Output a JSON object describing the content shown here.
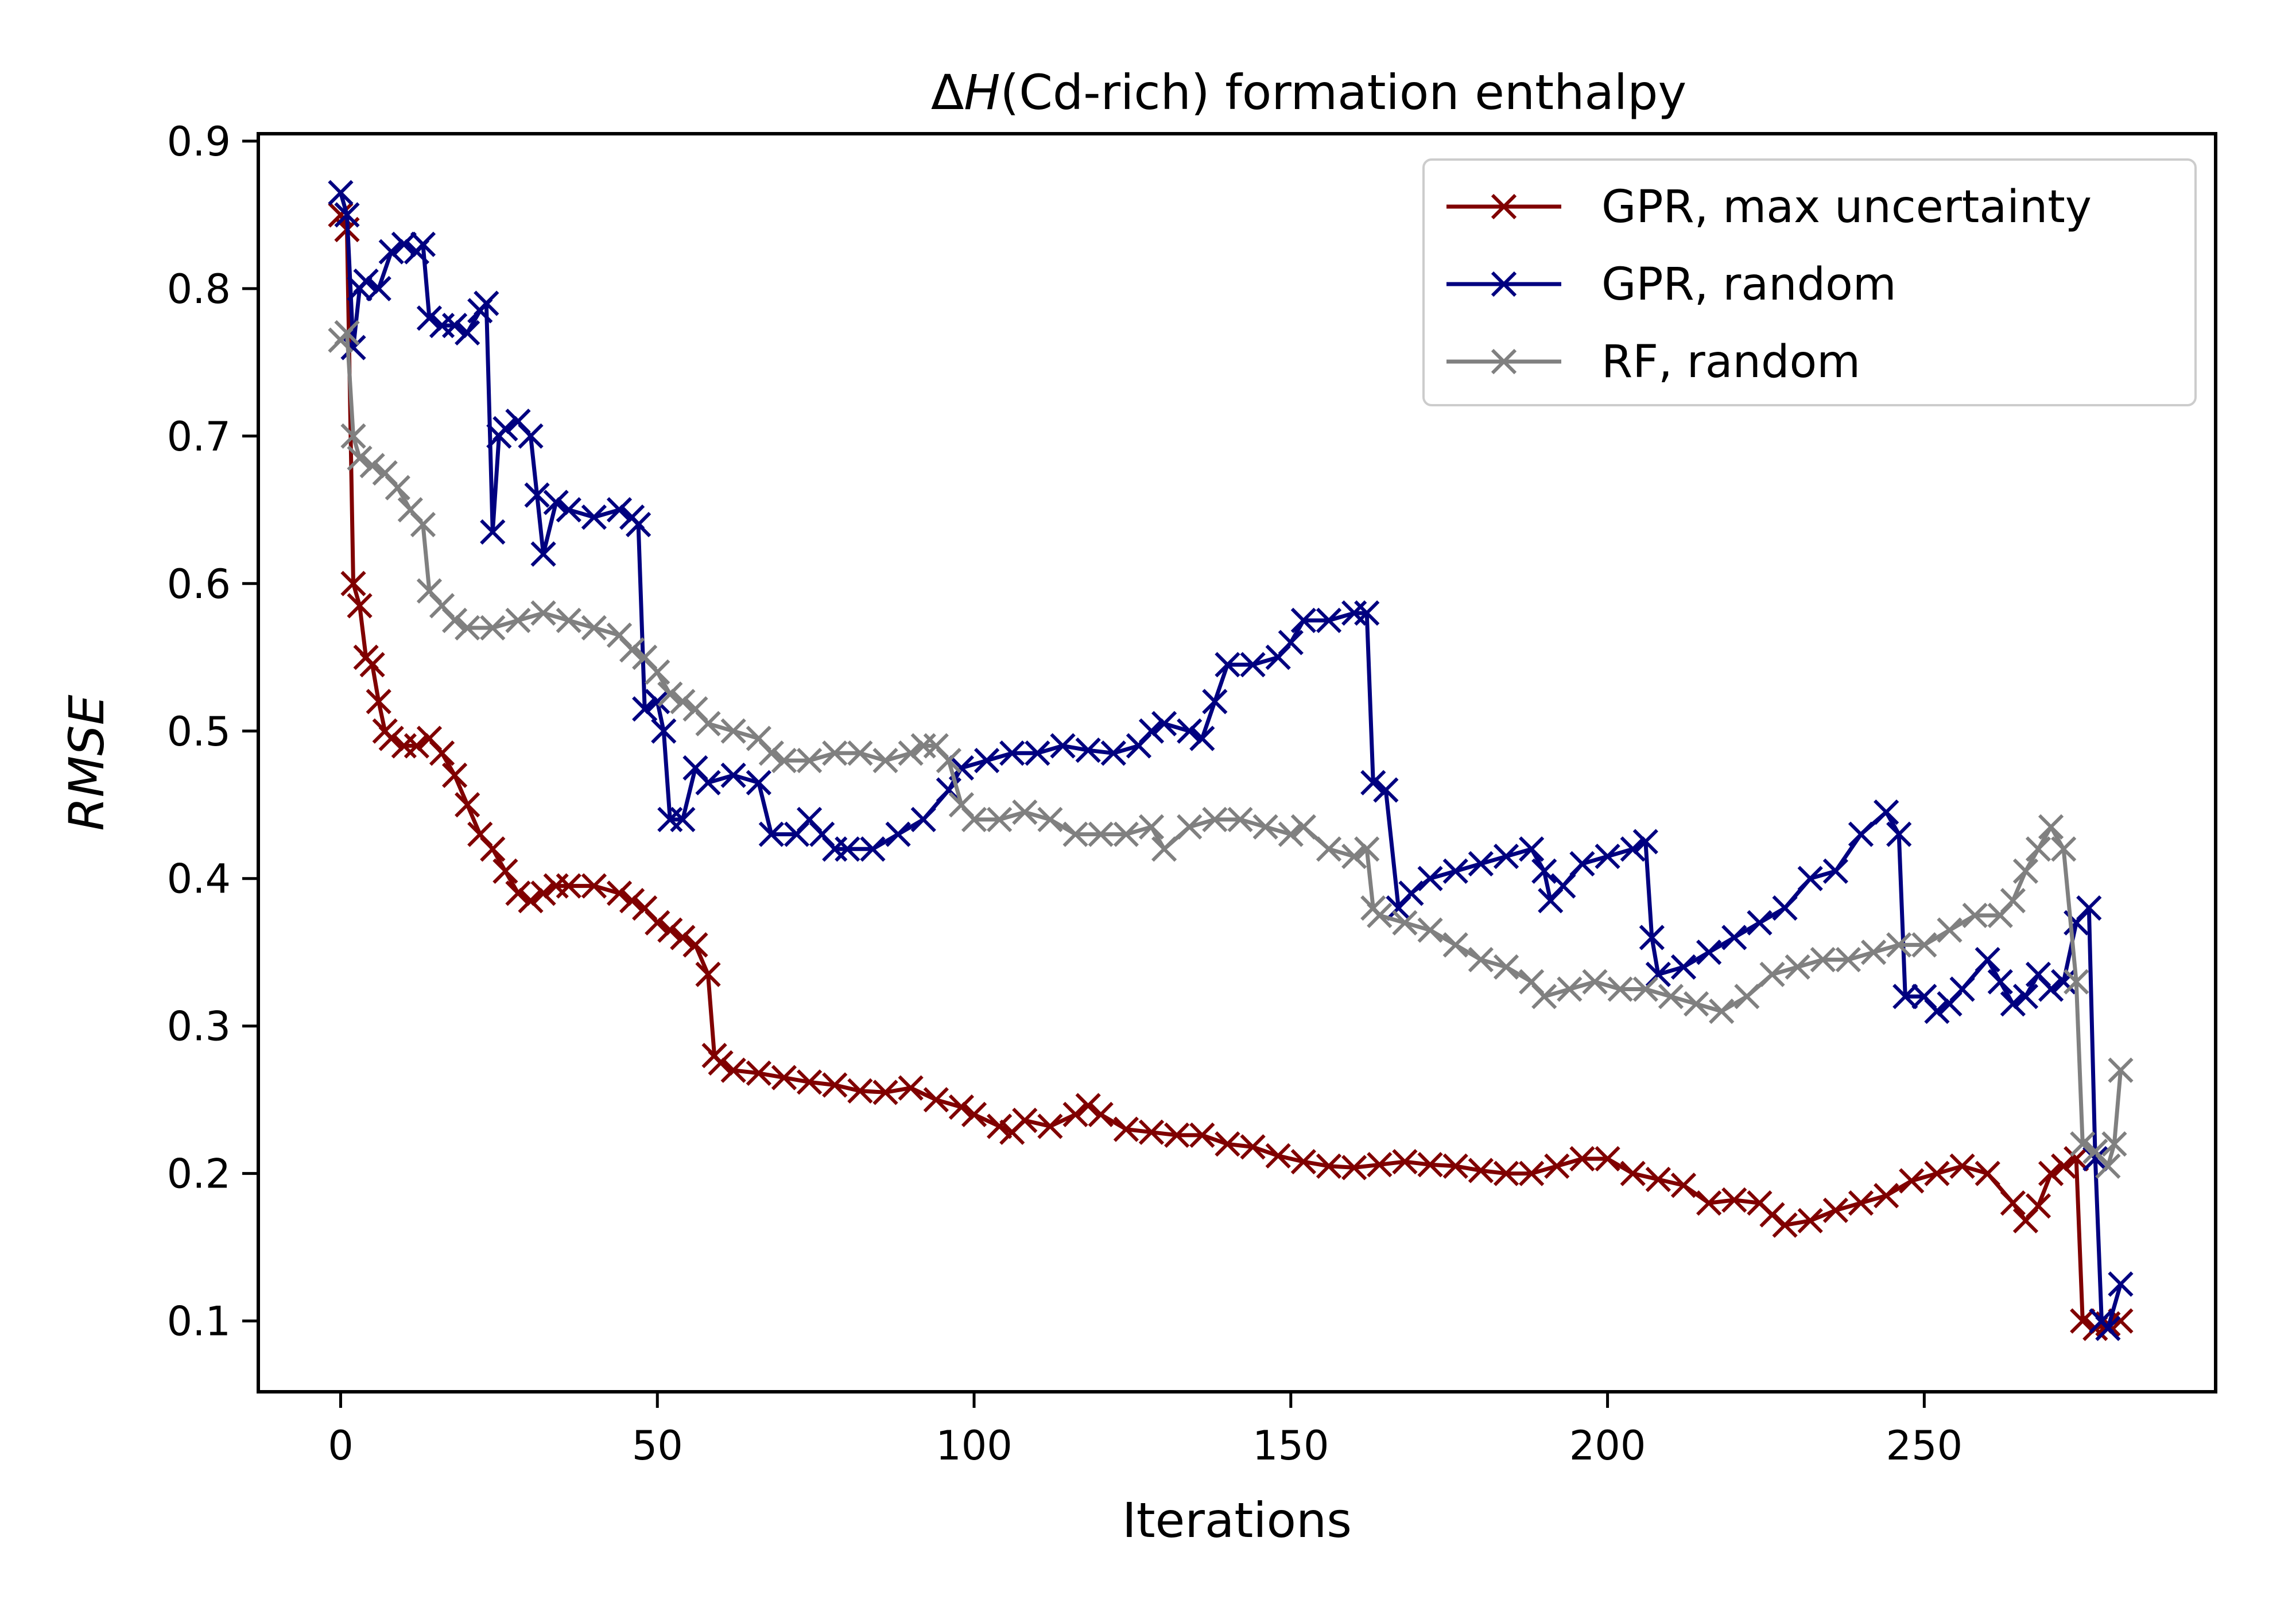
{
  "chart_data": {
    "type": "line",
    "title_prefix": "Δ",
    "title_symbol": "H",
    "title_suffix": "(Cd-rich) formation enthalpy",
    "xlabel": "Iterations",
    "ylabel": "RMSE",
    "xlim": [
      -13,
      296
    ],
    "ylim": [
      0.052,
      0.905
    ],
    "xticks": [
      0,
      50,
      100,
      150,
      200,
      250
    ],
    "xtick_labels": [
      "0",
      "50",
      "100",
      "150",
      "200",
      "250"
    ],
    "yticks": [
      0.1,
      0.2,
      0.3,
      0.4,
      0.5,
      0.6,
      0.7,
      0.8,
      0.9
    ],
    "ytick_labels": [
      "0.1",
      "0.2",
      "0.3",
      "0.4",
      "0.5",
      "0.6",
      "0.7",
      "0.8",
      "0.9"
    ],
    "marker": "x",
    "grid": false,
    "legend_position": "top-right",
    "series": [
      {
        "name": "GPR, max uncertainty",
        "color": "#800000",
        "points": [
          [
            0,
            0.85
          ],
          [
            1,
            0.84
          ],
          [
            2,
            0.6
          ],
          [
            3,
            0.585
          ],
          [
            4,
            0.55
          ],
          [
            5,
            0.545
          ],
          [
            6,
            0.52
          ],
          [
            7,
            0.5
          ],
          [
            8,
            0.495
          ],
          [
            10,
            0.49
          ],
          [
            12,
            0.49
          ],
          [
            14,
            0.495
          ],
          [
            16,
            0.485
          ],
          [
            18,
            0.47
          ],
          [
            20,
            0.45
          ],
          [
            22,
            0.43
          ],
          [
            24,
            0.42
          ],
          [
            26,
            0.405
          ],
          [
            28,
            0.39
          ],
          [
            30,
            0.385
          ],
          [
            32,
            0.39
          ],
          [
            34,
            0.395
          ],
          [
            36,
            0.395
          ],
          [
            40,
            0.395
          ],
          [
            44,
            0.39
          ],
          [
            46,
            0.385
          ],
          [
            48,
            0.38
          ],
          [
            50,
            0.37
          ],
          [
            52,
            0.365
          ],
          [
            54,
            0.36
          ],
          [
            56,
            0.355
          ],
          [
            58,
            0.335
          ],
          [
            59,
            0.28
          ],
          [
            60,
            0.275
          ],
          [
            62,
            0.27
          ],
          [
            66,
            0.268
          ],
          [
            70,
            0.265
          ],
          [
            74,
            0.262
          ],
          [
            78,
            0.26
          ],
          [
            82,
            0.256
          ],
          [
            86,
            0.255
          ],
          [
            90,
            0.258
          ],
          [
            94,
            0.25
          ],
          [
            98,
            0.245
          ],
          [
            100,
            0.24
          ],
          [
            104,
            0.232
          ],
          [
            106,
            0.228
          ],
          [
            108,
            0.236
          ],
          [
            112,
            0.232
          ],
          [
            116,
            0.24
          ],
          [
            118,
            0.246
          ],
          [
            120,
            0.24
          ],
          [
            124,
            0.23
          ],
          [
            128,
            0.228
          ],
          [
            132,
            0.226
          ],
          [
            136,
            0.226
          ],
          [
            140,
            0.22
          ],
          [
            144,
            0.218
          ],
          [
            148,
            0.212
          ],
          [
            152,
            0.208
          ],
          [
            156,
            0.205
          ],
          [
            160,
            0.204
          ],
          [
            164,
            0.206
          ],
          [
            168,
            0.208
          ],
          [
            172,
            0.206
          ],
          [
            176,
            0.205
          ],
          [
            180,
            0.202
          ],
          [
            184,
            0.2
          ],
          [
            188,
            0.2
          ],
          [
            192,
            0.205
          ],
          [
            196,
            0.21
          ],
          [
            200,
            0.21
          ],
          [
            204,
            0.2
          ],
          [
            208,
            0.196
          ],
          [
            212,
            0.192
          ],
          [
            216,
            0.18
          ],
          [
            220,
            0.182
          ],
          [
            224,
            0.18
          ],
          [
            226,
            0.172
          ],
          [
            228,
            0.165
          ],
          [
            232,
            0.168
          ],
          [
            236,
            0.175
          ],
          [
            240,
            0.18
          ],
          [
            244,
            0.185
          ],
          [
            248,
            0.195
          ],
          [
            252,
            0.2
          ],
          [
            256,
            0.205
          ],
          [
            260,
            0.2
          ],
          [
            264,
            0.18
          ],
          [
            266,
            0.168
          ],
          [
            268,
            0.178
          ],
          [
            270,
            0.2
          ],
          [
            272,
            0.205
          ],
          [
            274,
            0.21
          ],
          [
            275,
            0.1
          ],
          [
            277,
            0.095
          ],
          [
            279,
            0.098
          ],
          [
            281,
            0.1
          ]
        ]
      },
      {
        "name": "GPR, random",
        "color": "#000080",
        "points": [
          [
            0,
            0.865
          ],
          [
            1,
            0.85
          ],
          [
            2,
            0.76
          ],
          [
            3,
            0.8
          ],
          [
            4,
            0.805
          ],
          [
            6,
            0.8
          ],
          [
            8,
            0.825
          ],
          [
            10,
            0.83
          ],
          [
            12,
            0.825
          ],
          [
            13,
            0.83
          ],
          [
            14,
            0.78
          ],
          [
            16,
            0.775
          ],
          [
            18,
            0.775
          ],
          [
            20,
            0.77
          ],
          [
            22,
            0.785
          ],
          [
            23,
            0.79
          ],
          [
            24,
            0.635
          ],
          [
            25,
            0.7
          ],
          [
            26,
            0.705
          ],
          [
            28,
            0.71
          ],
          [
            30,
            0.7
          ],
          [
            31,
            0.66
          ],
          [
            32,
            0.62
          ],
          [
            34,
            0.655
          ],
          [
            36,
            0.65
          ],
          [
            40,
            0.645
          ],
          [
            44,
            0.65
          ],
          [
            46,
            0.645
          ],
          [
            47,
            0.64
          ],
          [
            48,
            0.515
          ],
          [
            50,
            0.52
          ],
          [
            51,
            0.5
          ],
          [
            52,
            0.44
          ],
          [
            54,
            0.44
          ],
          [
            56,
            0.475
          ],
          [
            58,
            0.465
          ],
          [
            62,
            0.47
          ],
          [
            66,
            0.465
          ],
          [
            68,
            0.43
          ],
          [
            72,
            0.43
          ],
          [
            74,
            0.44
          ],
          [
            76,
            0.43
          ],
          [
            78,
            0.42
          ],
          [
            80,
            0.42
          ],
          [
            84,
            0.42
          ],
          [
            88,
            0.43
          ],
          [
            92,
            0.44
          ],
          [
            96,
            0.46
          ],
          [
            98,
            0.475
          ],
          [
            102,
            0.48
          ],
          [
            106,
            0.485
          ],
          [
            110,
            0.485
          ],
          [
            114,
            0.49
          ],
          [
            118,
            0.487
          ],
          [
            122,
            0.485
          ],
          [
            126,
            0.49
          ],
          [
            128,
            0.5
          ],
          [
            130,
            0.505
          ],
          [
            134,
            0.5
          ],
          [
            136,
            0.495
          ],
          [
            138,
            0.52
          ],
          [
            140,
            0.545
          ],
          [
            144,
            0.545
          ],
          [
            148,
            0.55
          ],
          [
            150,
            0.56
          ],
          [
            152,
            0.575
          ],
          [
            156,
            0.575
          ],
          [
            160,
            0.58
          ],
          [
            162,
            0.58
          ],
          [
            163,
            0.465
          ],
          [
            165,
            0.46
          ],
          [
            167,
            0.38
          ],
          [
            169,
            0.39
          ],
          [
            172,
            0.4
          ],
          [
            176,
            0.405
          ],
          [
            180,
            0.41
          ],
          [
            184,
            0.415
          ],
          [
            188,
            0.42
          ],
          [
            190,
            0.405
          ],
          [
            191,
            0.385
          ],
          [
            193,
            0.395
          ],
          [
            196,
            0.41
          ],
          [
            200,
            0.415
          ],
          [
            204,
            0.42
          ],
          [
            206,
            0.425
          ],
          [
            207,
            0.36
          ],
          [
            208,
            0.335
          ],
          [
            212,
            0.34
          ],
          [
            216,
            0.35
          ],
          [
            220,
            0.36
          ],
          [
            224,
            0.37
          ],
          [
            228,
            0.38
          ],
          [
            232,
            0.4
          ],
          [
            236,
            0.405
          ],
          [
            240,
            0.43
          ],
          [
            244,
            0.445
          ],
          [
            246,
            0.43
          ],
          [
            247,
            0.32
          ],
          [
            250,
            0.32
          ],
          [
            252,
            0.31
          ],
          [
            254,
            0.315
          ],
          [
            256,
            0.325
          ],
          [
            260,
            0.345
          ],
          [
            262,
            0.33
          ],
          [
            264,
            0.315
          ],
          [
            266,
            0.32
          ],
          [
            268,
            0.335
          ],
          [
            270,
            0.325
          ],
          [
            272,
            0.33
          ],
          [
            274,
            0.37
          ],
          [
            276,
            0.38
          ],
          [
            277,
            0.21
          ],
          [
            278,
            0.1
          ],
          [
            279,
            0.095
          ],
          [
            281,
            0.125
          ]
        ]
      },
      {
        "name": "RF, random",
        "color": "#808080",
        "points": [
          [
            0,
            0.765
          ],
          [
            1,
            0.77
          ],
          [
            2,
            0.7
          ],
          [
            3,
            0.685
          ],
          [
            5,
            0.68
          ],
          [
            7,
            0.675
          ],
          [
            9,
            0.665
          ],
          [
            11,
            0.65
          ],
          [
            13,
            0.64
          ],
          [
            14,
            0.595
          ],
          [
            16,
            0.585
          ],
          [
            18,
            0.575
          ],
          [
            20,
            0.57
          ],
          [
            24,
            0.57
          ],
          [
            28,
            0.575
          ],
          [
            32,
            0.58
          ],
          [
            36,
            0.575
          ],
          [
            40,
            0.57
          ],
          [
            44,
            0.565
          ],
          [
            46,
            0.555
          ],
          [
            48,
            0.55
          ],
          [
            50,
            0.54
          ],
          [
            52,
            0.525
          ],
          [
            54,
            0.52
          ],
          [
            56,
            0.515
          ],
          [
            58,
            0.505
          ],
          [
            62,
            0.5
          ],
          [
            66,
            0.495
          ],
          [
            68,
            0.485
          ],
          [
            70,
            0.48
          ],
          [
            74,
            0.48
          ],
          [
            78,
            0.485
          ],
          [
            82,
            0.485
          ],
          [
            86,
            0.48
          ],
          [
            90,
            0.485
          ],
          [
            92,
            0.49
          ],
          [
            94,
            0.49
          ],
          [
            96,
            0.48
          ],
          [
            98,
            0.45
          ],
          [
            100,
            0.44
          ],
          [
            104,
            0.44
          ],
          [
            108,
            0.445
          ],
          [
            112,
            0.44
          ],
          [
            116,
            0.43
          ],
          [
            120,
            0.43
          ],
          [
            124,
            0.43
          ],
          [
            128,
            0.435
          ],
          [
            130,
            0.42
          ],
          [
            134,
            0.435
          ],
          [
            138,
            0.44
          ],
          [
            142,
            0.44
          ],
          [
            146,
            0.435
          ],
          [
            150,
            0.43
          ],
          [
            152,
            0.435
          ],
          [
            156,
            0.42
          ],
          [
            160,
            0.415
          ],
          [
            162,
            0.42
          ],
          [
            163,
            0.38
          ],
          [
            164,
            0.375
          ],
          [
            168,
            0.37
          ],
          [
            172,
            0.365
          ],
          [
            176,
            0.355
          ],
          [
            180,
            0.345
          ],
          [
            184,
            0.34
          ],
          [
            188,
            0.33
          ],
          [
            190,
            0.32
          ],
          [
            194,
            0.325
          ],
          [
            198,
            0.33
          ],
          [
            202,
            0.325
          ],
          [
            206,
            0.325
          ],
          [
            210,
            0.32
          ],
          [
            214,
            0.315
          ],
          [
            218,
            0.31
          ],
          [
            222,
            0.32
          ],
          [
            226,
            0.335
          ],
          [
            230,
            0.34
          ],
          [
            234,
            0.345
          ],
          [
            238,
            0.345
          ],
          [
            242,
            0.35
          ],
          [
            246,
            0.355
          ],
          [
            250,
            0.355
          ],
          [
            254,
            0.365
          ],
          [
            258,
            0.375
          ],
          [
            262,
            0.375
          ],
          [
            264,
            0.385
          ],
          [
            266,
            0.405
          ],
          [
            268,
            0.42
          ],
          [
            270,
            0.435
          ],
          [
            272,
            0.42
          ],
          [
            274,
            0.33
          ],
          [
            275,
            0.22
          ],
          [
            277,
            0.215
          ],
          [
            279,
            0.205
          ],
          [
            280,
            0.22
          ],
          [
            281,
            0.27
          ]
        ]
      }
    ]
  }
}
